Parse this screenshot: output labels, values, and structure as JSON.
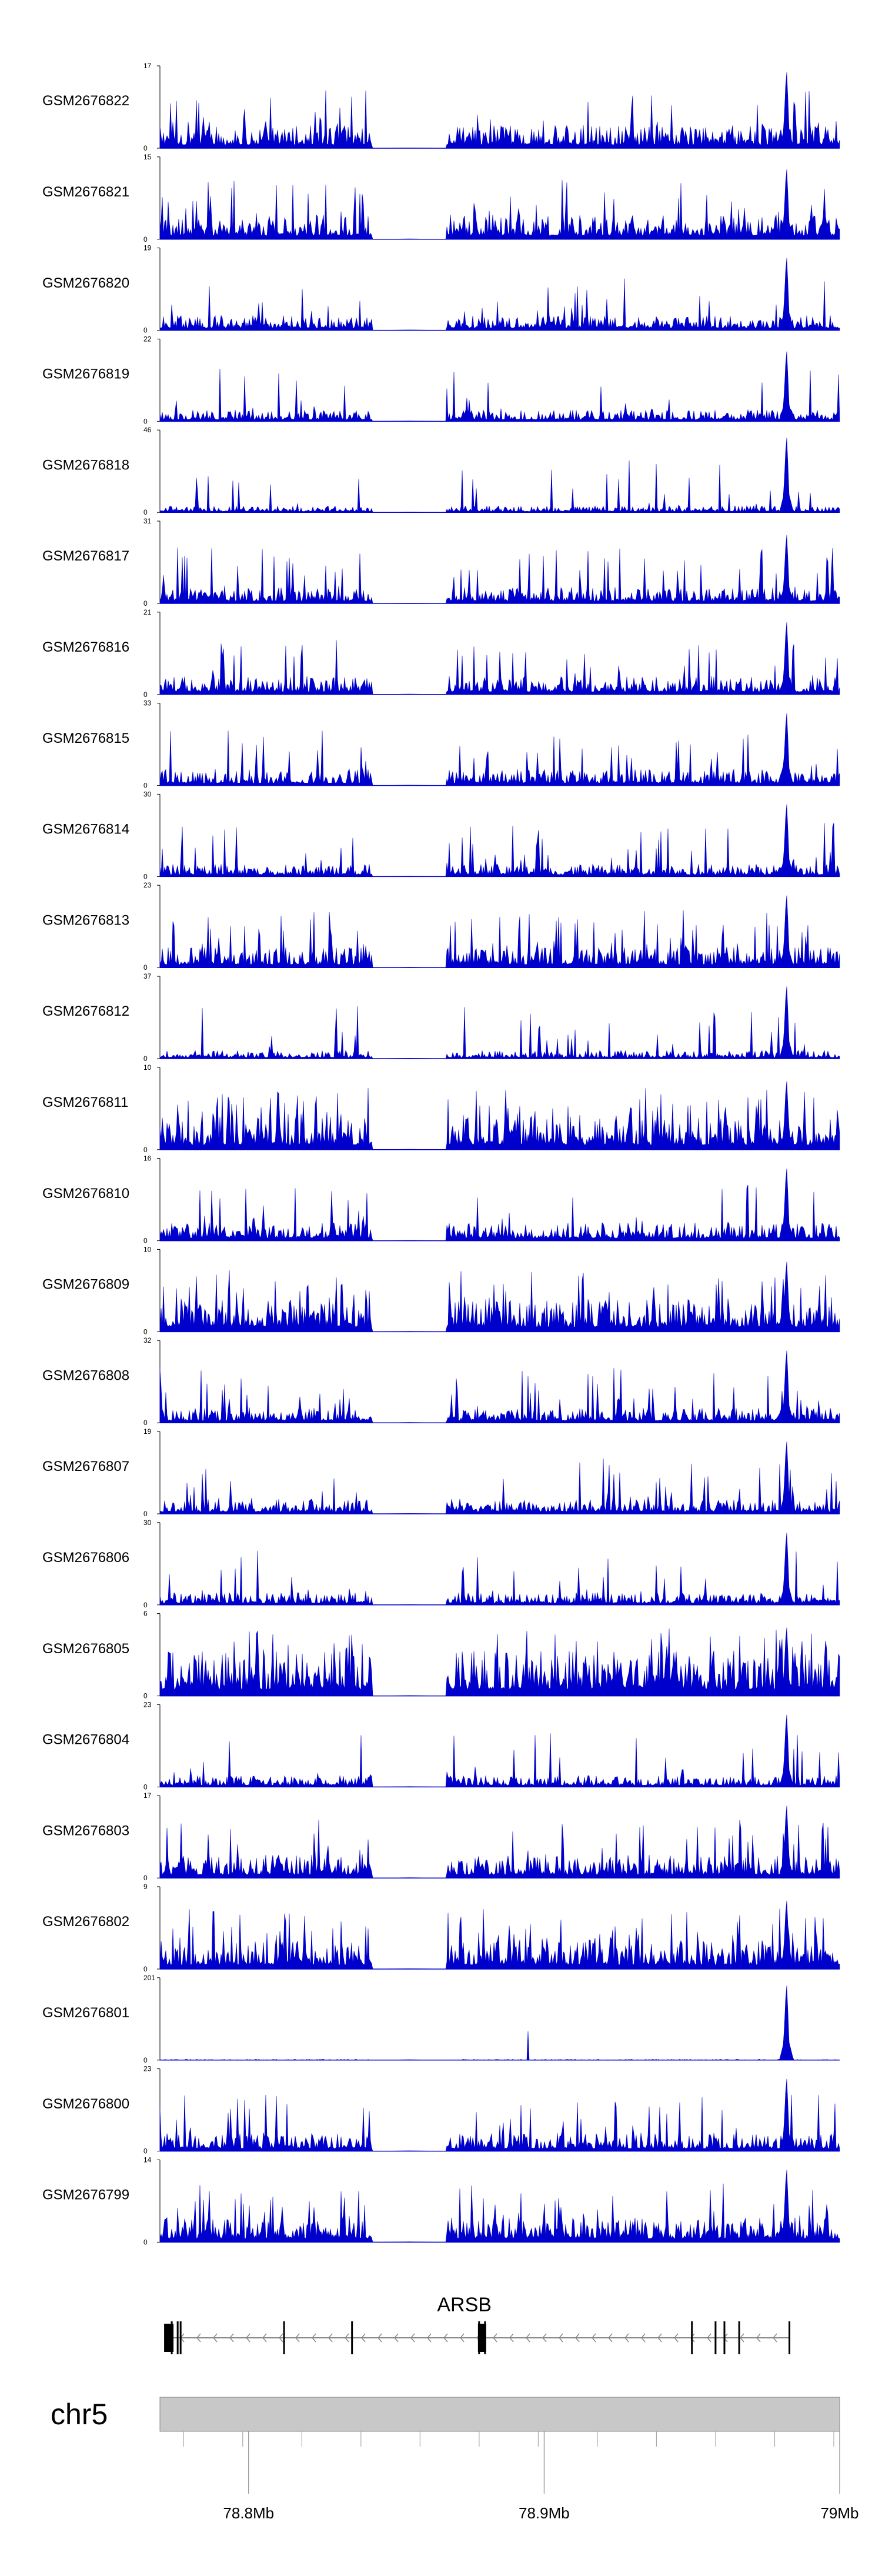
{
  "chart_data": {
    "type": "area",
    "title": "",
    "xlabel": "",
    "ylabel": "",
    "chromosome": "chr5",
    "x_range": [
      78.77,
      79.0
    ],
    "x_ticks": [
      {
        "value": 78.8,
        "label": "78.8Mb"
      },
      {
        "value": 78.9,
        "label": "78.9Mb"
      },
      {
        "value": 79.0,
        "label": "79Mb"
      }
    ],
    "x_minor_ticks": [
      78.78,
      78.8,
      78.82,
      78.84,
      78.86,
      78.88,
      78.9,
      78.92,
      78.94,
      78.96,
      78.98,
      79.0
    ],
    "gap_region": [
      78.842,
      78.867
    ],
    "fill_color": "#0000cc",
    "tracks": [
      {
        "name": "GSM2676822",
        "ymax": "17",
        "peak_height": 1.0,
        "base": 0.28,
        "noise": 0.35
      },
      {
        "name": "GSM2676821",
        "ymax": "15",
        "peak_height": 0.92,
        "base": 0.3,
        "noise": 0.4
      },
      {
        "name": "GSM2676820",
        "ymax": "19",
        "peak_height": 0.95,
        "base": 0.18,
        "noise": 0.25
      },
      {
        "name": "GSM2676819",
        "ymax": "22",
        "peak_height": 0.92,
        "base": 0.14,
        "noise": 0.25
      },
      {
        "name": "GSM2676818",
        "ymax": "46",
        "peak_height": 0.98,
        "base": 0.08,
        "noise": 0.3
      },
      {
        "name": "GSM2676817",
        "ymax": "31",
        "peak_height": 0.9,
        "base": 0.2,
        "noise": 0.5
      },
      {
        "name": "GSM2676816",
        "ymax": "21",
        "peak_height": 0.95,
        "base": 0.22,
        "noise": 0.5
      },
      {
        "name": "GSM2676815",
        "ymax": "33",
        "peak_height": 0.95,
        "base": 0.2,
        "noise": 0.5
      },
      {
        "name": "GSM2676814",
        "ymax": "30",
        "peak_height": 0.95,
        "base": 0.15,
        "noise": 0.45
      },
      {
        "name": "GSM2676813",
        "ymax": "23",
        "peak_height": 0.95,
        "base": 0.25,
        "noise": 0.55
      },
      {
        "name": "GSM2676812",
        "ymax": "37",
        "peak_height": 0.95,
        "base": 0.1,
        "noise": 0.3
      },
      {
        "name": "GSM2676811",
        "ymax": "10",
        "peak_height": 0.9,
        "base": 0.4,
        "noise": 0.6
      },
      {
        "name": "GSM2676810",
        "ymax": "16",
        "peak_height": 0.95,
        "base": 0.22,
        "noise": 0.35
      },
      {
        "name": "GSM2676809",
        "ymax": "10",
        "peak_height": 0.92,
        "base": 0.4,
        "noise": 0.6
      },
      {
        "name": "GSM2676808",
        "ymax": "32",
        "peak_height": 0.95,
        "base": 0.18,
        "noise": 0.5
      },
      {
        "name": "GSM2676807",
        "ymax": "19",
        "peak_height": 0.95,
        "base": 0.18,
        "noise": 0.3
      },
      {
        "name": "GSM2676806",
        "ymax": "30",
        "peak_height": 0.95,
        "base": 0.15,
        "noise": 0.35
      },
      {
        "name": "GSM2676805",
        "ymax": "6",
        "peak_height": 0.9,
        "base": 0.55,
        "noise": 0.5
      },
      {
        "name": "GSM2676804",
        "ymax": "23",
        "peak_height": 0.95,
        "base": 0.14,
        "noise": 0.3
      },
      {
        "name": "GSM2676803",
        "ymax": "17",
        "peak_height": 0.95,
        "base": 0.28,
        "noise": 0.45
      },
      {
        "name": "GSM2676802",
        "ymax": "9",
        "peak_height": 0.9,
        "base": 0.35,
        "noise": 0.65
      },
      {
        "name": "GSM2676801",
        "ymax": "201",
        "peak_height": 0.98,
        "base": 0.01,
        "noise": 0.02
      },
      {
        "name": "GSM2676800",
        "ymax": "23",
        "peak_height": 0.95,
        "base": 0.22,
        "noise": 0.45
      },
      {
        "name": "GSM2676799",
        "ymax": "14",
        "peak_height": 0.95,
        "base": 0.3,
        "noise": 0.5
      }
    ],
    "peak_position": 78.982,
    "gene": {
      "name": "ARSB",
      "strand": "-",
      "start": 78.773,
      "end": 78.983,
      "exons": [
        78.773,
        78.774,
        78.776,
        78.777,
        78.812,
        78.835,
        78.878,
        78.879,
        78.88,
        78.95,
        78.958,
        78.961,
        78.966,
        78.983
      ]
    }
  }
}
